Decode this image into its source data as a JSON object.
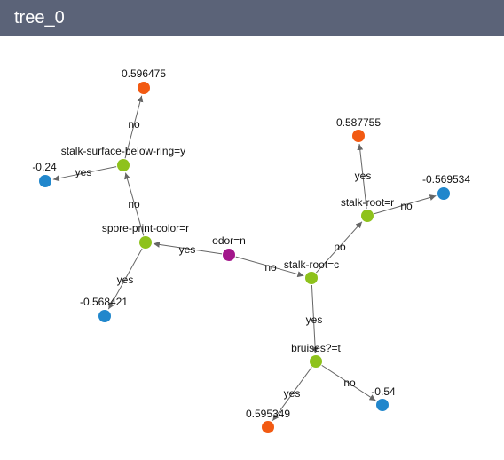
{
  "window": {
    "title": "tree_0"
  },
  "colors": {
    "root": "#a3178b",
    "split": "#8ec21c",
    "leaf_positive": "#f25a12",
    "leaf_negative": "#2187cc",
    "edge": "#666666"
  },
  "tree": {
    "nodes": [
      {
        "id": "root",
        "label": "odor=n",
        "kind": "root"
      },
      {
        "id": "n_spore",
        "label": "spore-print-color=r",
        "kind": "split"
      },
      {
        "id": "n_ssbr",
        "label": "stalk-surface-below-ring=y",
        "kind": "split"
      },
      {
        "id": "l_0596475",
        "label": "0.596475",
        "kind": "leaf_positive"
      },
      {
        "id": "l_m024",
        "label": "-0.24",
        "kind": "leaf_negative"
      },
      {
        "id": "l_m0568421",
        "label": "-0.568421",
        "kind": "leaf_negative"
      },
      {
        "id": "n_stalkroot_c",
        "label": "stalk-root=c",
        "kind": "split"
      },
      {
        "id": "n_stalkroot_r",
        "label": "stalk-root=r",
        "kind": "split"
      },
      {
        "id": "l_0587755",
        "label": "0.587755",
        "kind": "leaf_positive"
      },
      {
        "id": "l_m0569534",
        "label": "-0.569534",
        "kind": "leaf_negative"
      },
      {
        "id": "n_bruises",
        "label": "bruises?=t",
        "kind": "split"
      },
      {
        "id": "l_0595349",
        "label": "0.595349",
        "kind": "leaf_positive"
      },
      {
        "id": "l_m054",
        "label": "-0.54",
        "kind": "leaf_negative"
      }
    ],
    "edges": [
      {
        "from": "root",
        "to": "n_spore",
        "label": "yes"
      },
      {
        "from": "root",
        "to": "n_stalkroot_c",
        "label": "no"
      },
      {
        "from": "n_spore",
        "to": "n_ssbr",
        "label": "no"
      },
      {
        "from": "n_spore",
        "to": "l_m0568421",
        "label": "yes"
      },
      {
        "from": "n_ssbr",
        "to": "l_0596475",
        "label": "no"
      },
      {
        "from": "n_ssbr",
        "to": "l_m024",
        "label": "yes"
      },
      {
        "from": "n_stalkroot_c",
        "to": "n_stalkroot_r",
        "label": "no"
      },
      {
        "from": "n_stalkroot_c",
        "to": "n_bruises",
        "label": "yes"
      },
      {
        "from": "n_stalkroot_r",
        "to": "l_0587755",
        "label": "yes"
      },
      {
        "from": "n_stalkroot_r",
        "to": "l_m0569534",
        "label": "no"
      },
      {
        "from": "n_bruises",
        "to": "l_0595349",
        "label": "yes"
      },
      {
        "from": "n_bruises",
        "to": "l_m054",
        "label": "no"
      }
    ]
  }
}
